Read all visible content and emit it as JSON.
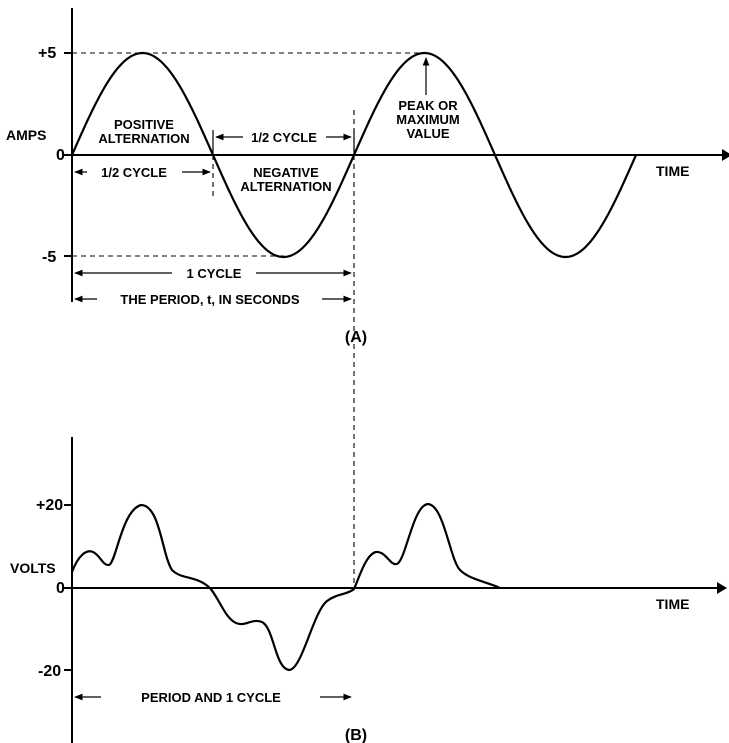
{
  "figure_a": {
    "caption": "(A)",
    "y_axis_label": "AMPS",
    "x_axis_label": "TIME",
    "y_ticks": [
      "+5",
      "0",
      "-5"
    ],
    "annotations": {
      "positive_alternation_1": "POSITIVE",
      "positive_alternation_2": "ALTERNATION",
      "negative_alternation_1": "NEGATIVE",
      "negative_alternation_2": "ALTERNATION",
      "peak_1": "PEAK OR",
      "peak_2": "MAXIMUM",
      "peak_3": "VALUE",
      "half_cycle_top": "1/2 CYCLE",
      "half_cycle_left": "1/2 CYCLE",
      "one_cycle": "1 CYCLE",
      "period": "THE PERIOD, t, IN SECONDS"
    }
  },
  "figure_b": {
    "caption": "(B)",
    "y_axis_label": "VOLTS",
    "x_axis_label": "TIME",
    "y_ticks": [
      "+20",
      "0",
      "-20"
    ],
    "annotations": {
      "period": "PERIOD AND 1 CYCLE"
    }
  },
  "colors": {
    "ink": "#000000",
    "background": "#ffffff"
  }
}
